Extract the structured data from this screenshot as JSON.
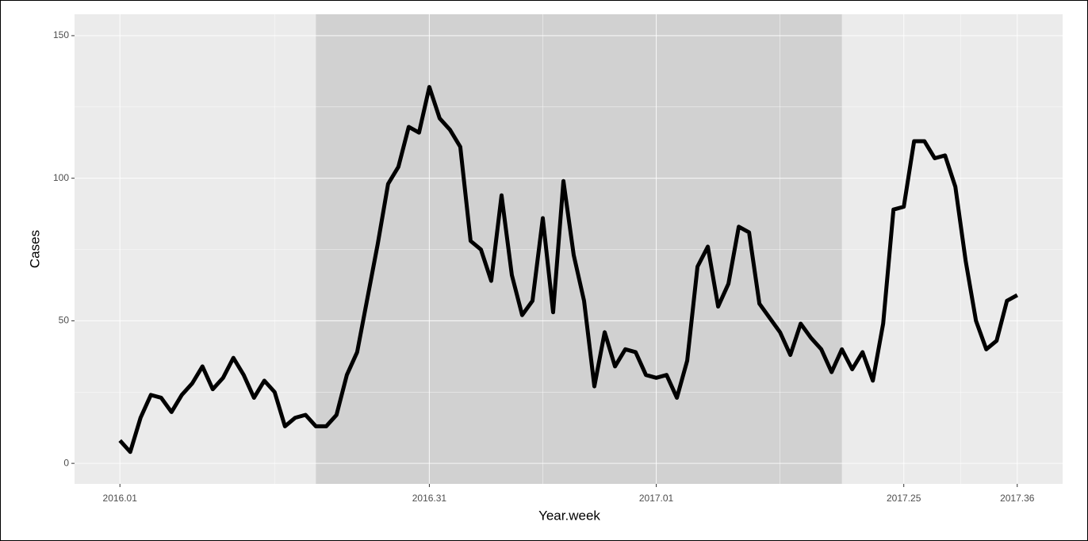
{
  "chart_data": {
    "type": "line",
    "x_label": "Year.week",
    "y_label": "Cases",
    "color": "#000000",
    "highlight_color": "#cccccc",
    "highlight_index": [
      19,
      70
    ],
    "categories": [
      "2016.01",
      null,
      null,
      null,
      null,
      null,
      null,
      null,
      null,
      null,
      null,
      null,
      null,
      null,
      null,
      null,
      null,
      null,
      null,
      null,
      null,
      null,
      null,
      null,
      null,
      null,
      null,
      null,
      null,
      null,
      "2016.31",
      null,
      null,
      null,
      null,
      null,
      null,
      null,
      null,
      null,
      null,
      null,
      null,
      null,
      null,
      null,
      null,
      null,
      null,
      null,
      null,
      null,
      "2017.01",
      null,
      null,
      null,
      null,
      null,
      null,
      null,
      null,
      null,
      null,
      null,
      null,
      null,
      null,
      null,
      null,
      null,
      null,
      null,
      null,
      null,
      null,
      null,
      "2017.25",
      null,
      null,
      null,
      null,
      null,
      null,
      null,
      null,
      null,
      null,
      "2017.36"
    ],
    "values": [
      8,
      4,
      16,
      24,
      23,
      18,
      24,
      28,
      34,
      26,
      30,
      37,
      31,
      23,
      29,
      25,
      13,
      16,
      17,
      13,
      13,
      17,
      31,
      39,
      58,
      77,
      98,
      104,
      118,
      116,
      132,
      121,
      117,
      111,
      78,
      75,
      64,
      94,
      66,
      52,
      57,
      86,
      53,
      99,
      73,
      57,
      27,
      46,
      34,
      40,
      39,
      31,
      30,
      31,
      23,
      36,
      69,
      76,
      55,
      63,
      83,
      81,
      56,
      51,
      46,
      38,
      49,
      44,
      40,
      32,
      40,
      33,
      39,
      29,
      49,
      89,
      90,
      113,
      113,
      107,
      108,
      97,
      71,
      50,
      40,
      43,
      57,
      59
    ],
    "ylim": [
      -7.2,
      157.5
    ],
    "yticks": [
      0,
      50,
      100,
      150
    ],
    "grid": true
  }
}
